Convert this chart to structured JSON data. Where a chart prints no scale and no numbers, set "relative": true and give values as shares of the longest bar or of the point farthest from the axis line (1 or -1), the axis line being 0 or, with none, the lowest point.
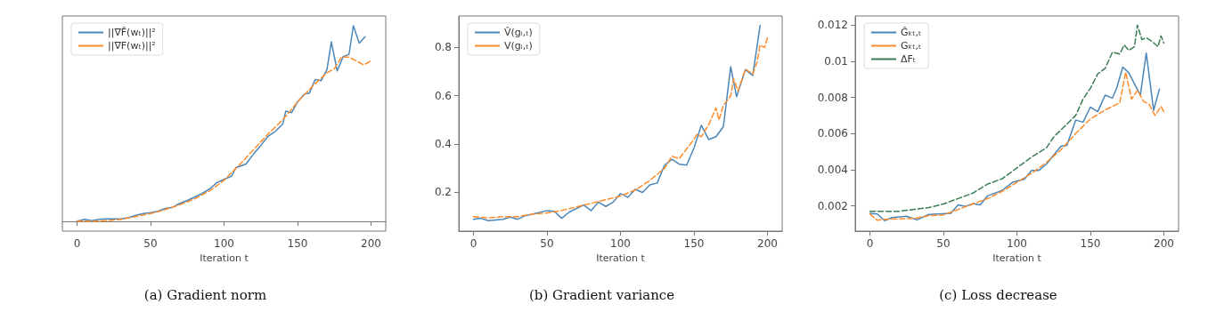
{
  "chart_data": [
    {
      "type": "line",
      "title": "(a) Gradient norm",
      "xlabel": "Iteration t",
      "relative": true,
      "xlim": [
        -10,
        210
      ],
      "xticks": [
        0,
        50,
        100,
        150,
        200
      ],
      "legend": "top left",
      "marker": "none",
      "grid": false,
      "series": [
        {
          "name": "||∇F̂(wₜ)||²",
          "color": "#4a86b8",
          "line_style": "solid",
          "x": [
            0,
            5,
            10,
            15,
            20,
            25,
            30,
            35,
            40,
            45,
            50,
            55,
            60,
            65,
            70,
            75,
            80,
            85,
            90,
            95,
            100,
            105,
            108,
            115,
            120,
            125,
            130,
            135,
            140,
            142,
            146,
            150,
            155,
            158,
            162,
            166,
            170,
            173,
            177,
            181,
            185,
            188,
            192,
            196
          ],
          "values": [
            0,
            0.01,
            0.004,
            0.01,
            0.012,
            0.013,
            0.013,
            0.019,
            0.031,
            0.04,
            0.044,
            0.051,
            0.066,
            0.072,
            0.092,
            0.107,
            0.124,
            0.142,
            0.165,
            0.197,
            0.215,
            0.23,
            0.274,
            0.293,
            0.344,
            0.388,
            0.435,
            0.461,
            0.498,
            0.564,
            0.556,
            0.611,
            0.652,
            0.655,
            0.725,
            0.719,
            0.776,
            0.918,
            0.769,
            0.842,
            0.854,
            1,
            0.911,
            0.944
          ]
        },
        {
          "name": "||∇F(wₜ)||²",
          "color": "#ff8c2a",
          "line_style": "dashed",
          "x": [
            0,
            10,
            20,
            30,
            40,
            50,
            60,
            70,
            80,
            90,
            100,
            110,
            120,
            130,
            140,
            150,
            160,
            170,
            175,
            180,
            185,
            190,
            195,
            200
          ],
          "values": [
            0.002,
            0,
            0.003,
            0.01,
            0.025,
            0.04,
            0.06,
            0.085,
            0.115,
            0.155,
            0.21,
            0.285,
            0.366,
            0.447,
            0.52,
            0.61,
            0.69,
            0.76,
            0.78,
            0.84,
            0.84,
            0.82,
            0.8,
            0.82
          ]
        }
      ]
    },
    {
      "type": "line",
      "title": "(b) Gradient variance",
      "xlabel": "Iteration t",
      "xlim": [
        -10,
        210
      ],
      "xticks": [
        0,
        50,
        100,
        150,
        200
      ],
      "ylim": [
        0.04,
        0.93
      ],
      "yticks": [
        0.2,
        0.4,
        0.6,
        0.8
      ],
      "legend": "top left",
      "marker": "none",
      "grid": false,
      "series": [
        {
          "name": "V̂(gᵢ,ₜ)",
          "color": "#4a86b8",
          "line_style": "solid",
          "x": [
            0,
            5,
            10,
            20,
            25,
            30,
            35,
            40,
            50,
            55,
            60,
            65,
            75,
            80,
            85,
            90,
            95,
            100,
            105,
            110,
            115,
            120,
            125,
            130,
            135,
            140,
            145,
            150,
            155,
            160,
            165,
            170,
            175,
            179,
            185,
            190,
            195
          ],
          "values": [
            0.089,
            0.093,
            0.083,
            0.089,
            0.098,
            0.089,
            0.103,
            0.11,
            0.125,
            0.122,
            0.093,
            0.118,
            0.148,
            0.125,
            0.16,
            0.142,
            0.16,
            0.195,
            0.18,
            0.213,
            0.2,
            0.231,
            0.239,
            0.313,
            0.337,
            0.317,
            0.313,
            0.384,
            0.478,
            0.419,
            0.431,
            0.472,
            0.72,
            0.596,
            0.708,
            0.684,
            0.891
          ]
        },
        {
          "name": "V(gᵢ,ₜ)",
          "color": "#ff8c2a",
          "line_style": "dashed",
          "x": [
            0,
            10,
            20,
            30,
            40,
            50,
            60,
            70,
            80,
            90,
            100,
            110,
            120,
            130,
            135,
            140,
            145,
            150,
            152,
            155,
            160,
            165,
            167,
            170,
            175,
            177,
            180,
            185,
            190,
            193,
            195,
            198,
            200
          ],
          "values": [
            0.1,
            0.095,
            0.1,
            0.1,
            0.11,
            0.115,
            0.125,
            0.14,
            0.155,
            0.17,
            0.185,
            0.21,
            0.25,
            0.3,
            0.35,
            0.34,
            0.38,
            0.42,
            0.44,
            0.43,
            0.48,
            0.55,
            0.5,
            0.56,
            0.6,
            0.67,
            0.62,
            0.71,
            0.69,
            0.74,
            0.81,
            0.8,
            0.84
          ]
        }
      ]
    },
    {
      "type": "line",
      "title": "(c) Loss decrease",
      "xlabel": "Iteration t",
      "xlim": [
        -10,
        210
      ],
      "xticks": [
        0,
        50,
        100,
        150,
        200
      ],
      "ylim": [
        0.0006,
        0.0125
      ],
      "yticks": [
        0.002,
        0.004,
        0.006,
        0.008,
        0.01,
        0.012
      ],
      "legend": "top left",
      "marker": "none",
      "grid": false,
      "series": [
        {
          "name": "Ĝₖₜ,ₜ",
          "color": "#4a86b8",
          "line_style": "solid",
          "x": [
            0,
            5,
            10,
            15,
            25,
            32,
            40,
            55,
            60,
            65,
            70,
            75,
            80,
            90,
            97,
            105,
            110,
            115,
            120,
            125,
            130,
            134,
            140,
            145,
            150,
            155,
            160,
            165,
            168,
            172,
            176,
            184,
            188,
            193,
            197
          ],
          "values": [
            0.00158,
            0.00155,
            0.00118,
            0.00135,
            0.00142,
            0.00122,
            0.00152,
            0.00158,
            0.00205,
            0.00197,
            0.00212,
            0.00205,
            0.00255,
            0.00285,
            0.0033,
            0.00346,
            0.00396,
            0.00396,
            0.0043,
            0.0048,
            0.0053,
            0.00535,
            0.00674,
            0.00663,
            0.00746,
            0.00721,
            0.00812,
            0.00796,
            0.00854,
            0.00967,
            0.00937,
            0.00812,
            0.01045,
            0.00729,
            0.00846
          ]
        },
        {
          "name": "Gₖₜ,ₜ",
          "color": "#ff8c2a",
          "line_style": "dashed",
          "x": [
            0,
            5,
            10,
            20,
            30,
            40,
            50,
            60,
            70,
            80,
            90,
            100,
            110,
            120,
            130,
            140,
            150,
            160,
            170,
            174,
            178,
            182,
            186,
            190,
            194,
            198,
            200
          ],
          "values": [
            0.00155,
            0.0012,
            0.00125,
            0.00128,
            0.0013,
            0.00145,
            0.0015,
            0.0018,
            0.0021,
            0.0024,
            0.0028,
            0.0033,
            0.0038,
            0.0044,
            0.0051,
            0.006,
            0.0068,
            0.0073,
            0.0077,
            0.0094,
            0.0079,
            0.0084,
            0.0078,
            0.0076,
            0.007,
            0.0075,
            0.0072
          ]
        },
        {
          "name": "ΔFₜ",
          "color": "#3a7d55",
          "line_style": "dashed",
          "x": [
            0,
            10,
            20,
            30,
            40,
            50,
            60,
            70,
            80,
            90,
            100,
            110,
            120,
            125,
            130,
            140,
            145,
            150,
            155,
            160,
            165,
            170,
            173,
            176,
            180,
            182,
            185,
            188,
            192,
            196,
            198,
            200
          ],
          "values": [
            0.0017,
            0.0017,
            0.0017,
            0.0018,
            0.0019,
            0.0021,
            0.0024,
            0.0027,
            0.0032,
            0.0035,
            0.0041,
            0.0047,
            0.0052,
            0.0058,
            0.0062,
            0.007,
            0.0079,
            0.0085,
            0.0093,
            0.0096,
            0.0105,
            0.0104,
            0.0109,
            0.0106,
            0.0108,
            0.012,
            0.0112,
            0.0113,
            0.0111,
            0.0108,
            0.0114,
            0.011
          ]
        }
      ]
    }
  ]
}
